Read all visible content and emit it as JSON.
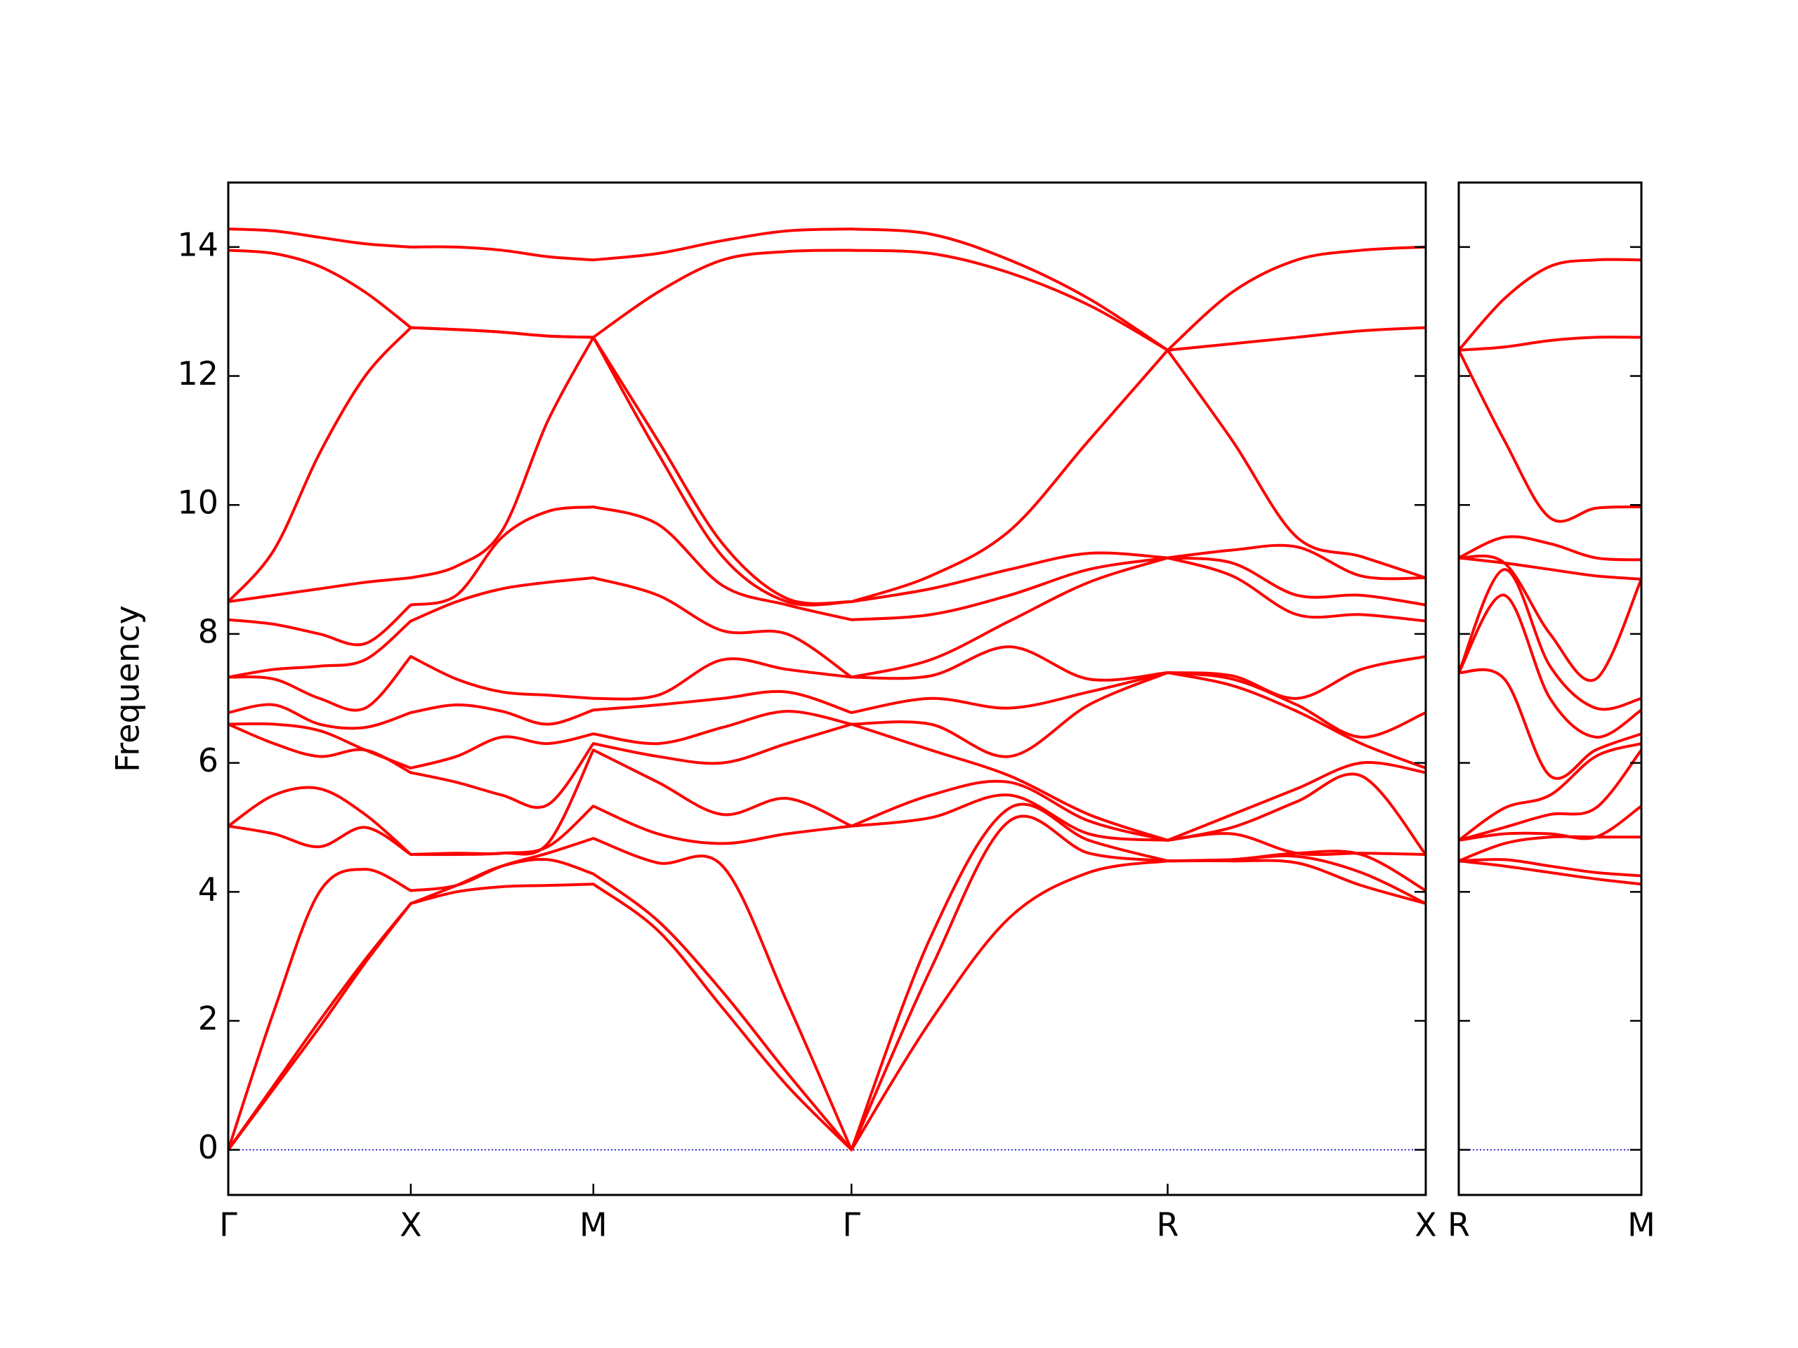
{
  "chart_data": [
    {
      "type": "line",
      "ylabel": "Frequency",
      "color": "#ff0000",
      "xlim": [
        0,
        3.28
      ],
      "ylim": [
        -0.7,
        15
      ],
      "xticks": [
        {
          "value": 0,
          "label": "Γ"
        },
        {
          "value": 0.5,
          "label": "X"
        },
        {
          "value": 1.0,
          "label": "M"
        },
        {
          "value": 1.707,
          "label": "Γ"
        },
        {
          "value": 2.573,
          "label": "R"
        },
        {
          "value": 3.28,
          "label": "X"
        }
      ],
      "yticks": [
        0,
        2,
        4,
        6,
        8,
        10,
        12,
        14
      ],
      "hline": 0,
      "hline_color": "#0000cc",
      "x": [
        0,
        0.125,
        0.25,
        0.375,
        0.5,
        0.625,
        0.75,
        0.875,
        1.0,
        1.177,
        1.354,
        1.53,
        1.707,
        1.924,
        2.14,
        2.357,
        2.573,
        2.75,
        2.927,
        3.103,
        3.28
      ],
      "series": [
        {
          "values": [
            0,
            0.95,
            1.9,
            2.9,
            3.82,
            4.0,
            4.08,
            4.1,
            4.12,
            3.4,
            2.2,
            1.0,
            0,
            2.0,
            3.6,
            4.3,
            4.48,
            4.48,
            4.45,
            4.1,
            3.82
          ]
        },
        {
          "values": [
            0,
            1.0,
            2.0,
            2.95,
            3.82,
            4.1,
            4.4,
            4.5,
            4.28,
            3.55,
            2.45,
            1.2,
            0,
            2.8,
            5.1,
            4.6,
            4.48,
            4.5,
            4.55,
            4.3,
            3.82
          ]
        },
        {
          "values": [
            0,
            2.15,
            4.0,
            4.35,
            4.02,
            4.1,
            4.4,
            4.6,
            4.83,
            4.45,
            4.4,
            2.3,
            0,
            3.3,
            5.3,
            4.8,
            4.48,
            4.5,
            4.6,
            4.58,
            4.02
          ]
        },
        {
          "values": [
            5.02,
            4.9,
            4.7,
            5.0,
            4.58,
            4.58,
            4.6,
            4.7,
            5.33,
            4.9,
            4.75,
            4.9,
            5.02,
            5.15,
            5.5,
            4.9,
            4.8,
            4.9,
            4.6,
            4.6,
            4.58
          ]
        },
        {
          "values": [
            5.02,
            5.5,
            5.6,
            5.2,
            4.58,
            4.6,
            4.6,
            4.75,
            6.2,
            5.7,
            5.2,
            5.45,
            5.02,
            5.5,
            5.7,
            5.1,
            4.8,
            5.0,
            5.4,
            5.8,
            4.58
          ]
        },
        {
          "values": [
            6.6,
            6.3,
            6.1,
            6.2,
            5.85,
            5.7,
            5.5,
            5.35,
            6.3,
            6.1,
            6.0,
            6.3,
            6.6,
            6.2,
            5.8,
            5.2,
            4.8,
            5.2,
            5.6,
            6.0,
            5.85
          ]
        },
        {
          "values": [
            6.6,
            6.6,
            6.5,
            6.2,
            5.92,
            6.1,
            6.4,
            6.3,
            6.45,
            6.3,
            6.55,
            6.8,
            6.6,
            6.6,
            6.1,
            6.9,
            7.4,
            7.2,
            6.8,
            6.3,
            5.92
          ]
        },
        {
          "values": [
            6.78,
            6.9,
            6.6,
            6.55,
            6.78,
            6.9,
            6.8,
            6.6,
            6.82,
            6.9,
            7.0,
            7.1,
            6.78,
            7.0,
            6.85,
            7.1,
            7.4,
            7.3,
            6.9,
            6.4,
            6.78
          ]
        },
        {
          "values": [
            7.33,
            7.3,
            7.0,
            6.85,
            7.65,
            7.3,
            7.1,
            7.05,
            7.0,
            7.05,
            7.6,
            7.45,
            7.33,
            7.35,
            7.8,
            7.3,
            7.4,
            7.35,
            7.0,
            7.45,
            7.65
          ]
        },
        {
          "values": [
            7.33,
            7.45,
            7.5,
            7.6,
            8.2,
            8.5,
            8.7,
            8.8,
            8.87,
            8.6,
            8.05,
            8.0,
            7.33,
            7.6,
            8.2,
            8.8,
            9.18,
            8.9,
            8.3,
            8.3,
            8.2
          ]
        },
        {
          "values": [
            8.22,
            8.15,
            8.0,
            7.85,
            8.45,
            8.6,
            9.5,
            9.9,
            9.97,
            9.7,
            8.75,
            8.45,
            8.22,
            8.3,
            8.6,
            9.0,
            9.18,
            9.1,
            8.6,
            8.6,
            8.45
          ]
        },
        {
          "values": [
            8.5,
            8.6,
            8.7,
            8.8,
            8.87,
            9.05,
            9.6,
            11.3,
            12.6,
            10.8,
            9.2,
            8.5,
            8.5,
            8.7,
            9.0,
            9.25,
            9.18,
            9.3,
            9.35,
            8.9,
            8.87
          ]
        },
        {
          "values": [
            8.5,
            9.3,
            10.8,
            12.0,
            12.75,
            12.72,
            12.68,
            12.62,
            12.6,
            11.0,
            9.4,
            8.55,
            8.5,
            8.9,
            9.6,
            11.0,
            12.4,
            11.0,
            9.5,
            9.2,
            8.87
          ]
        },
        {
          "values": [
            13.95,
            13.9,
            13.7,
            13.3,
            12.75,
            12.72,
            12.68,
            12.62,
            12.6,
            13.3,
            13.8,
            13.93,
            13.95,
            13.9,
            13.6,
            13.1,
            12.4,
            12.5,
            12.6,
            12.7,
            12.75
          ]
        },
        {
          "values": [
            14.28,
            14.25,
            14.15,
            14.05,
            14.0,
            14.0,
            13.95,
            13.85,
            13.8,
            13.9,
            14.1,
            14.25,
            14.28,
            14.2,
            13.8,
            13.2,
            12.4,
            13.3,
            13.8,
            13.95,
            14.0
          ]
        }
      ]
    },
    {
      "type": "line",
      "color": "#ff0000",
      "xlim": [
        0,
        0.5
      ],
      "ylim": [
        -0.7,
        15
      ],
      "xticks": [
        {
          "value": 0,
          "label": "R"
        },
        {
          "value": 0.5,
          "label": "M"
        }
      ],
      "hline": 0,
      "hline_color": "#0000cc",
      "x": [
        0,
        0.125,
        0.25,
        0.375,
        0.5
      ],
      "series": [
        {
          "values": [
            4.48,
            4.4,
            4.3,
            4.2,
            4.12
          ]
        },
        {
          "values": [
            4.48,
            4.5,
            4.4,
            4.3,
            4.25
          ]
        },
        {
          "values": [
            4.48,
            4.75,
            4.85,
            4.85,
            4.85
          ]
        },
        {
          "values": [
            4.8,
            4.9,
            4.9,
            4.85,
            5.33
          ]
        },
        {
          "values": [
            4.8,
            5.0,
            5.2,
            5.3,
            6.2
          ]
        },
        {
          "values": [
            4.8,
            5.3,
            5.5,
            6.1,
            6.3
          ]
        },
        {
          "values": [
            7.4,
            7.3,
            5.8,
            6.2,
            6.45
          ]
        },
        {
          "values": [
            7.4,
            8.6,
            7.0,
            6.4,
            6.82
          ]
        },
        {
          "values": [
            7.4,
            9.0,
            7.5,
            6.85,
            7.0
          ]
        },
        {
          "values": [
            9.18,
            9.1,
            8.0,
            7.3,
            8.85
          ]
        },
        {
          "values": [
            9.18,
            9.1,
            9.0,
            8.9,
            8.85
          ]
        },
        {
          "values": [
            9.18,
            9.5,
            9.4,
            9.18,
            9.15
          ]
        },
        {
          "values": [
            12.4,
            11.0,
            9.8,
            9.95,
            9.97
          ]
        },
        {
          "values": [
            12.4,
            12.45,
            12.55,
            12.6,
            12.6
          ]
        },
        {
          "values": [
            12.4,
            13.2,
            13.7,
            13.8,
            13.8
          ]
        }
      ]
    }
  ]
}
